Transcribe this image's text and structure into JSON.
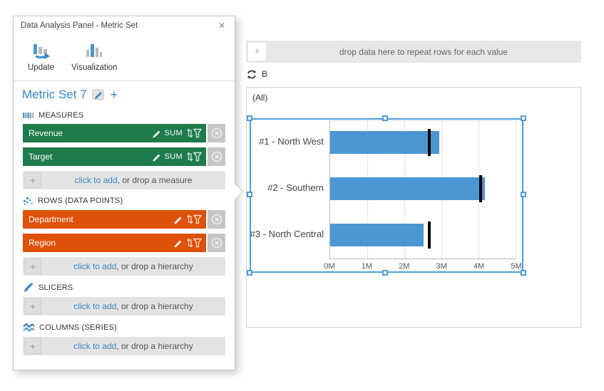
{
  "glyphs": {
    "plus": "+",
    "close": "✕"
  },
  "colors": {
    "accent_blue": "#3787C8",
    "measure_green": "#1E7B4B",
    "row_orange": "#DE5108",
    "bar_blue": "#4A96D2",
    "selection_blue": "#4E9CD8",
    "target_black": "#000000"
  },
  "panel": {
    "title": "Data Analysis Panel - Metric Set",
    "toolbar": [
      {
        "label": "Update"
      },
      {
        "label": "Visualization"
      }
    ],
    "metric_set": {
      "title": "Metric Set 7"
    },
    "sections": {
      "measures": {
        "header": "MEASURES",
        "items": [
          {
            "label": "Revenue",
            "aggregator": "SUM"
          },
          {
            "label": "Target",
            "aggregator": "SUM"
          }
        ],
        "add_link": "click to add",
        "add_suffix": ", or drop a measure"
      },
      "rows": {
        "header": "ROWS (DATA POINTS)",
        "items": [
          {
            "label": "Department"
          },
          {
            "label": "Region"
          }
        ],
        "add_link": "click to add",
        "add_suffix": ", or drop a hierarchy"
      },
      "slicers": {
        "header": "SLICERS",
        "add_link": "click to add",
        "add_suffix": ", or drop a hierarchy"
      },
      "columns": {
        "header": "COLUMNS (SERIES)",
        "add_link": "click to add",
        "add_suffix": ", or drop a hierarchy"
      }
    }
  },
  "canvas": {
    "drop_zone_text": "drop data here to repeat rows for each value",
    "repeat_label": "B",
    "group_label": "(All)"
  },
  "chart_data": {
    "type": "bar",
    "orientation": "horizontal",
    "title": "",
    "group_label": "(All)",
    "categories": [
      "#1 - North West",
      "#2 - Southern",
      "#3 - North Central"
    ],
    "series": [
      {
        "name": "Revenue",
        "values": [
          2950000,
          4180000,
          2520000
        ]
      },
      {
        "name": "Target",
        "values": [
          2670000,
          4050000,
          2680000
        ]
      }
    ],
    "x_ticks": [
      "0M",
      "1M",
      "2M",
      "3M",
      "4M",
      "5M"
    ],
    "xlim": [
      0,
      5000000
    ],
    "gridlines": "dotted-vertical",
    "legend": "none"
  }
}
